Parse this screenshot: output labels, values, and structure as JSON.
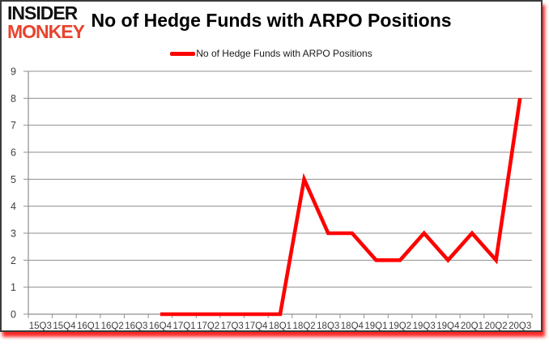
{
  "header": {
    "logo_line1": "INSIDER",
    "logo_line2": "MONKEY",
    "title": "No of Hedge Funds with ARPO Positions"
  },
  "legend": {
    "label": "No of Hedge Funds with ARPO Positions"
  },
  "colors": {
    "series_red": "#ff0000",
    "logo_red": "#e8432d",
    "grid_gray": "#8f8f8f",
    "axis_label_gray": "#3f3f3f",
    "frame_border": "#3b3b3b",
    "shadow_red": "#fb1010"
  },
  "chart_data": {
    "type": "line",
    "title": "No of Hedge Funds with ARPO Positions",
    "categories": [
      "15Q3",
      "15Q4",
      "16Q1",
      "16Q2",
      "16Q3",
      "16Q4",
      "17Q1",
      "17Q2",
      "17Q3",
      "17Q4",
      "18Q1",
      "18Q2",
      "18Q3",
      "18Q4",
      "19Q1",
      "19Q2",
      "19Q3",
      "19Q4",
      "20Q1",
      "20Q2",
      "20Q3"
    ],
    "series": [
      {
        "name": "No of Hedge Funds with ARPO Positions",
        "color": "#ff0000",
        "values": [
          null,
          null,
          null,
          null,
          null,
          0,
          0,
          0,
          0,
          0,
          0,
          5,
          3,
          3,
          2,
          2,
          3,
          2,
          3,
          2,
          8
        ]
      }
    ],
    "ylim": [
      0,
      9
    ],
    "ytick_interval": 1,
    "ytick_labels": [
      "0",
      "1",
      "2",
      "3",
      "4",
      "5",
      "6",
      "7",
      "8",
      "9"
    ],
    "grid": true,
    "legend_position": "top-center"
  }
}
